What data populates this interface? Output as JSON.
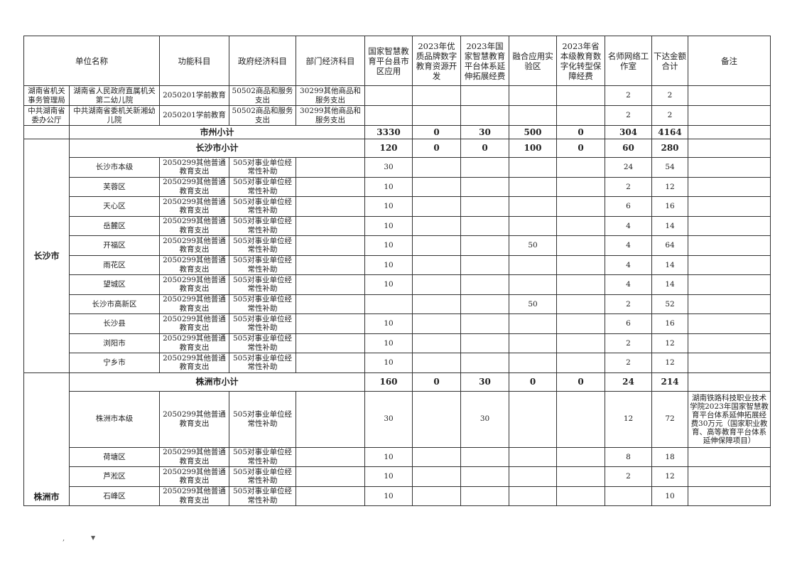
{
  "headers": {
    "unit": "单位名称",
    "func": "功能科目",
    "gov": "政府经济科目",
    "dept": "部门经济科目",
    "c1": "国家智慧教育平台县市区应用",
    "c2": "2023年优质品牌数字教育资源开发",
    "c3": "2023年国家智慧教育平台体系延伸拓展经费",
    "c4": "融合应用实验区",
    "c5": "2023年省本级教育数字化转型保障经费",
    "c6": "名师网络工作室",
    "total": "下达金额合计",
    "note": "备注"
  },
  "top_rows": [
    {
      "org": "湖南省机关事务管理局",
      "unit": "湖南省人民政府直属机关第二幼儿院",
      "func": "2050201学前教育",
      "gov": "50502商品和服务支出",
      "dept": "30299其他商品和服务支出",
      "c6": "2",
      "total": "2"
    },
    {
      "org": "中共湖南省委办公厅",
      "unit": "中共湖南省委机关新湘幼儿院",
      "func": "2050201学前教育",
      "gov": "50502商品和服务支出",
      "dept": "30299其他商品和服务支出",
      "c6": "2",
      "total": "2"
    }
  ],
  "city_subtotal": {
    "label": "市州小计",
    "c1": "3330",
    "c2": "0",
    "c3": "30",
    "c4": "500",
    "c5": "0",
    "c6": "304",
    "total": "4164"
  },
  "changsha": {
    "region": "长沙市",
    "subtotal": {
      "label": "长沙市小计",
      "c1": "120",
      "c2": "0",
      "c3": "0",
      "c4": "100",
      "c5": "0",
      "c6": "60",
      "total": "280"
    },
    "func": "2050299其他普通教育支出",
    "gov": "505对事业单位经常性补助",
    "rows": [
      {
        "unit": "长沙市本级",
        "c1": "30",
        "c4": "",
        "c6": "24",
        "total": "54"
      },
      {
        "unit": "芙蓉区",
        "c1": "10",
        "c4": "",
        "c6": "2",
        "total": "12"
      },
      {
        "unit": "天心区",
        "c1": "10",
        "c4": "",
        "c6": "6",
        "total": "16"
      },
      {
        "unit": "岳麓区",
        "c1": "10",
        "c4": "",
        "c6": "4",
        "total": "14"
      },
      {
        "unit": "开福区",
        "c1": "10",
        "c4": "50",
        "c6": "4",
        "total": "64"
      },
      {
        "unit": "雨花区",
        "c1": "10",
        "c4": "",
        "c6": "4",
        "total": "14"
      },
      {
        "unit": "望城区",
        "c1": "10",
        "c4": "",
        "c6": "4",
        "total": "14"
      },
      {
        "unit": "长沙市高新区",
        "c1": "",
        "c4": "50",
        "c6": "2",
        "total": "52"
      },
      {
        "unit": "长沙县",
        "c1": "10",
        "c4": "",
        "c6": "6",
        "total": "16"
      },
      {
        "unit": "浏阳市",
        "c1": "10",
        "c4": "",
        "c6": "2",
        "total": "12"
      },
      {
        "unit": "宁乡市",
        "c1": "10",
        "c4": "",
        "c6": "2",
        "total": "12"
      }
    ]
  },
  "zhuzhou": {
    "region": "株洲市",
    "subtotal": {
      "label": "株洲市小计",
      "c1": "160",
      "c2": "0",
      "c3": "30",
      "c4": "0",
      "c5": "0",
      "c6": "24",
      "total": "214"
    },
    "func": "2050299其他普通教育支出",
    "gov": "505对事业单位经常性补助",
    "rows": [
      {
        "unit": "株洲市本级",
        "c1": "30",
        "c3": "30",
        "c6": "12",
        "total": "72",
        "note": "湖南铁路科技职业技术学院2023年国家智慧教育平台体系延伸拓展经费30万元（国家职业教育、高等教育平台体系延伸保障项目）"
      },
      {
        "unit": "荷塘区",
        "c1": "10",
        "c3": "",
        "c6": "8",
        "total": "18",
        "note": ""
      },
      {
        "unit": "芦淞区",
        "c1": "10",
        "c3": "",
        "c6": "2",
        "total": "12",
        "note": ""
      },
      {
        "unit": "石峰区",
        "c1": "10",
        "c3": "",
        "c6": "",
        "total": "10",
        "note": ""
      }
    ]
  }
}
